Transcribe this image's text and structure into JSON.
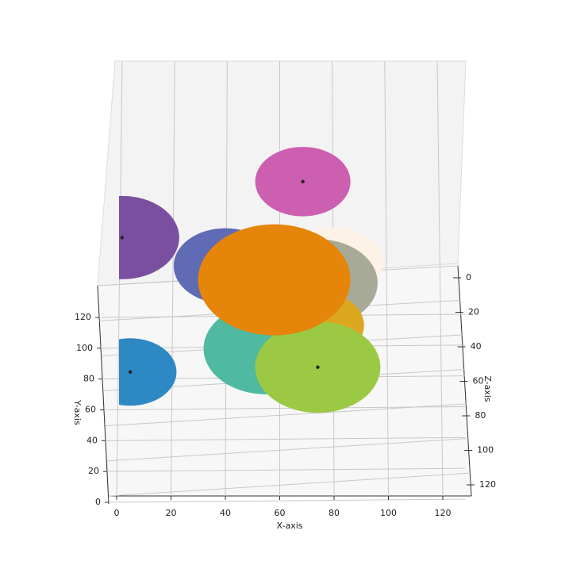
{
  "chart_data": {
    "type": "sphere3d",
    "x_label": "X-axis",
    "y_label": "Y-axis",
    "z_label": "Z-axis",
    "xlim": [
      0,
      120
    ],
    "ylim": [
      0,
      120
    ],
    "zlim": [
      0,
      120
    ],
    "xticks": [
      0,
      20,
      40,
      60,
      80,
      100,
      120
    ],
    "yticks": [
      0,
      20,
      40,
      60,
      80,
      100,
      120
    ],
    "zticks": [
      0,
      20,
      40,
      60,
      80,
      100,
      120
    ],
    "grid": true,
    "spheres": [
      {
        "x": 68.5,
        "y": 100,
        "z": 105,
        "r": 17.5,
        "color": "#cc5fb0",
        "marker": true
      },
      {
        "x": 2,
        "y": 110,
        "z": 60,
        "r": 21,
        "color": "#7b4fa0",
        "marker": true
      },
      {
        "x": 5,
        "y": 65,
        "z": 19,
        "r": 17,
        "color": "#2e88c4",
        "marker": true
      },
      {
        "x": 80,
        "y": 75,
        "z": 78,
        "r": 18,
        "color": "#fdf2e6",
        "marker": false
      },
      {
        "x": 74,
        "y": 60,
        "z": 80,
        "r": 22,
        "color": "#a8aa98",
        "marker": false
      },
      {
        "x": 40,
        "y": 70,
        "z": 81,
        "r": 19,
        "color": "#5f6bb5",
        "marker": false
      },
      {
        "x": 74,
        "y": 50,
        "z": 63,
        "r": 17,
        "color": "#dba71f",
        "marker": false
      },
      {
        "x": 55,
        "y": 40,
        "z": 58,
        "r": 23,
        "color": "#4fbaa0",
        "marker": true
      },
      {
        "x": 74,
        "y": 30,
        "z": 56,
        "r": 23,
        "color": "#9bc944",
        "marker": true
      },
      {
        "x": 58,
        "y": 62,
        "z": 80,
        "r": 28,
        "color": "#e5850a",
        "marker": false
      }
    ]
  }
}
